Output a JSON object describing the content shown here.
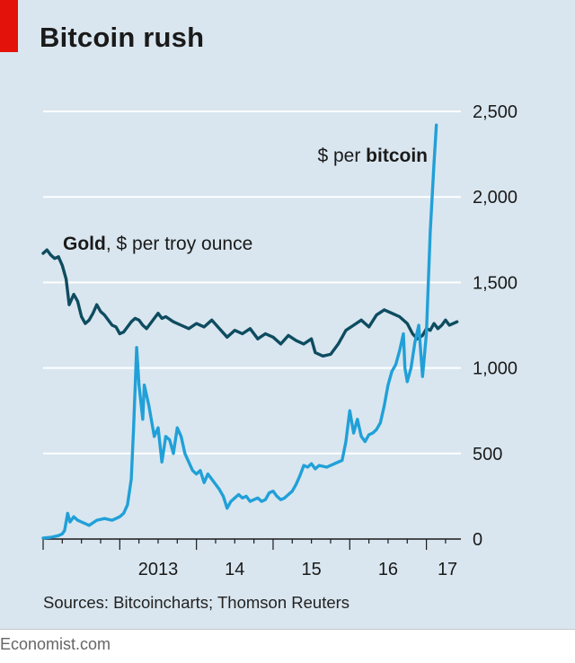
{
  "title": "Bitcoin rush",
  "source": "Sources: Bitcoincharts; Thomson Reuters",
  "credit": "Economist.com",
  "colors": {
    "background": "#d9e6ef",
    "gold": "#0e4c60",
    "bitcoin": "#21a0d8",
    "accent": "#e3120b",
    "grid": "#ffffff"
  },
  "chart_data": {
    "type": "line",
    "ylim": [
      0,
      2500
    ],
    "xlim": [
      2012.0,
      2017.45
    ],
    "y_ticks": [
      {
        "value": 0,
        "label": "0"
      },
      {
        "value": 500,
        "label": "500"
      },
      {
        "value": 1000,
        "label": "1,000"
      },
      {
        "value": 1500,
        "label": "1,500"
      },
      {
        "value": 2000,
        "label": "2,000"
      },
      {
        "value": 2500,
        "label": "2,500"
      }
    ],
    "x_ticks": [
      {
        "value": 2013,
        "label": "2013"
      },
      {
        "value": 2014,
        "label": "14"
      },
      {
        "value": 2015,
        "label": "15"
      },
      {
        "value": 2016,
        "label": "16"
      },
      {
        "value": 2017,
        "label": "17"
      }
    ],
    "grid": true,
    "series": [
      {
        "name": "Gold, $ per troy ounce",
        "label_bold": "Gold",
        "label_rest": ", $ per troy ounce",
        "color": "#0e4c60",
        "points": [
          [
            2012.0,
            1670
          ],
          [
            2012.05,
            1690
          ],
          [
            2012.1,
            1660
          ],
          [
            2012.15,
            1640
          ],
          [
            2012.2,
            1650
          ],
          [
            2012.25,
            1600
          ],
          [
            2012.3,
            1520
          ],
          [
            2012.34,
            1370
          ],
          [
            2012.4,
            1430
          ],
          [
            2012.45,
            1390
          ],
          [
            2012.5,
            1300
          ],
          [
            2012.55,
            1260
          ],
          [
            2012.6,
            1280
          ],
          [
            2012.65,
            1320
          ],
          [
            2012.7,
            1370
          ],
          [
            2012.75,
            1330
          ],
          [
            2012.8,
            1310
          ],
          [
            2012.85,
            1280
          ],
          [
            2012.9,
            1250
          ],
          [
            2012.95,
            1240
          ],
          [
            2013.0,
            1200
          ],
          [
            2013.05,
            1210
          ],
          [
            2013.1,
            1240
          ],
          [
            2013.15,
            1270
          ],
          [
            2013.2,
            1290
          ],
          [
            2013.25,
            1280
          ],
          [
            2013.3,
            1250
          ],
          [
            2013.35,
            1230
          ],
          [
            2013.4,
            1260
          ],
          [
            2013.45,
            1290
          ],
          [
            2013.5,
            1320
          ],
          [
            2013.55,
            1290
          ],
          [
            2013.6,
            1300
          ],
          [
            2013.7,
            1270
          ],
          [
            2013.8,
            1250
          ],
          [
            2013.9,
            1230
          ],
          [
            2014.0,
            1260
          ],
          [
            2014.1,
            1240
          ],
          [
            2014.2,
            1280
          ],
          [
            2014.3,
            1230
          ],
          [
            2014.4,
            1180
          ],
          [
            2014.5,
            1220
          ],
          [
            2014.6,
            1200
          ],
          [
            2014.7,
            1230
          ],
          [
            2014.8,
            1170
          ],
          [
            2014.9,
            1200
          ],
          [
            2015.0,
            1180
          ],
          [
            2015.1,
            1140
          ],
          [
            2015.2,
            1190
          ],
          [
            2015.3,
            1160
          ],
          [
            2015.4,
            1140
          ],
          [
            2015.5,
            1170
          ],
          [
            2015.55,
            1090
          ],
          [
            2015.65,
            1070
          ],
          [
            2015.75,
            1080
          ],
          [
            2015.85,
            1140
          ],
          [
            2015.95,
            1220
          ],
          [
            2016.05,
            1250
          ],
          [
            2016.15,
            1280
          ],
          [
            2016.25,
            1240
          ],
          [
            2016.35,
            1310
          ],
          [
            2016.45,
            1340
          ],
          [
            2016.55,
            1320
          ],
          [
            2016.65,
            1300
          ],
          [
            2016.75,
            1260
          ],
          [
            2016.82,
            1200
          ],
          [
            2016.88,
            1170
          ],
          [
            2016.95,
            1190
          ],
          [
            2017.0,
            1230
          ],
          [
            2017.05,
            1220
          ],
          [
            2017.1,
            1260
          ],
          [
            2017.15,
            1230
          ],
          [
            2017.2,
            1250
          ],
          [
            2017.25,
            1280
          ],
          [
            2017.3,
            1250
          ],
          [
            2017.35,
            1260
          ],
          [
            2017.4,
            1270
          ]
        ]
      },
      {
        "name": "$ per bitcoin",
        "label_rest": "$ per ",
        "label_bold": "bitcoin",
        "color": "#21a0d8",
        "points": [
          [
            2012.0,
            6
          ],
          [
            2012.1,
            10
          ],
          [
            2012.2,
            20
          ],
          [
            2012.25,
            30
          ],
          [
            2012.28,
            50
          ],
          [
            2012.32,
            150
          ],
          [
            2012.35,
            100
          ],
          [
            2012.4,
            130
          ],
          [
            2012.45,
            110
          ],
          [
            2012.5,
            100
          ],
          [
            2012.6,
            80
          ],
          [
            2012.7,
            110
          ],
          [
            2012.8,
            120
          ],
          [
            2012.9,
            110
          ],
          [
            2013.0,
            130
          ],
          [
            2013.05,
            150
          ],
          [
            2013.1,
            200
          ],
          [
            2013.15,
            350
          ],
          [
            2013.18,
            650
          ],
          [
            2013.22,
            1120
          ],
          [
            2013.25,
            900
          ],
          [
            2013.3,
            700
          ],
          [
            2013.32,
            900
          ],
          [
            2013.38,
            780
          ],
          [
            2013.45,
            600
          ],
          [
            2013.5,
            650
          ],
          [
            2013.55,
            450
          ],
          [
            2013.6,
            600
          ],
          [
            2013.65,
            580
          ],
          [
            2013.7,
            500
          ],
          [
            2013.75,
            650
          ],
          [
            2013.8,
            600
          ],
          [
            2013.85,
            500
          ],
          [
            2013.9,
            450
          ],
          [
            2013.95,
            400
          ],
          [
            2014.0,
            380
          ],
          [
            2014.05,
            400
          ],
          [
            2014.1,
            330
          ],
          [
            2014.15,
            380
          ],
          [
            2014.2,
            350
          ],
          [
            2014.25,
            320
          ],
          [
            2014.3,
            290
          ],
          [
            2014.35,
            250
          ],
          [
            2014.4,
            180
          ],
          [
            2014.45,
            220
          ],
          [
            2014.5,
            240
          ],
          [
            2014.55,
            260
          ],
          [
            2014.6,
            240
          ],
          [
            2014.65,
            250
          ],
          [
            2014.7,
            220
          ],
          [
            2014.75,
            230
          ],
          [
            2014.8,
            240
          ],
          [
            2014.85,
            220
          ],
          [
            2014.9,
            230
          ],
          [
            2014.95,
            270
          ],
          [
            2015.0,
            280
          ],
          [
            2015.05,
            250
          ],
          [
            2015.1,
            230
          ],
          [
            2015.15,
            240
          ],
          [
            2015.2,
            260
          ],
          [
            2015.25,
            280
          ],
          [
            2015.3,
            320
          ],
          [
            2015.35,
            370
          ],
          [
            2015.4,
            430
          ],
          [
            2015.45,
            420
          ],
          [
            2015.5,
            440
          ],
          [
            2015.55,
            410
          ],
          [
            2015.6,
            430
          ],
          [
            2015.7,
            420
          ],
          [
            2015.8,
            440
          ],
          [
            2015.9,
            460
          ],
          [
            2015.95,
            570
          ],
          [
            2016.0,
            750
          ],
          [
            2016.05,
            620
          ],
          [
            2016.1,
            700
          ],
          [
            2016.15,
            600
          ],
          [
            2016.2,
            570
          ],
          [
            2016.25,
            610
          ],
          [
            2016.3,
            620
          ],
          [
            2016.35,
            640
          ],
          [
            2016.4,
            680
          ],
          [
            2016.45,
            780
          ],
          [
            2016.5,
            900
          ],
          [
            2016.55,
            980
          ],
          [
            2016.6,
            1020
          ],
          [
            2016.65,
            1100
          ],
          [
            2016.7,
            1200
          ],
          [
            2016.72,
            1000
          ],
          [
            2016.75,
            920
          ],
          [
            2016.8,
            1000
          ],
          [
            2016.85,
            1150
          ],
          [
            2016.9,
            1250
          ],
          [
            2016.95,
            950
          ],
          [
            2017.0,
            1200
          ],
          [
            2017.05,
            1800
          ],
          [
            2017.1,
            2200
          ],
          [
            2017.13,
            2420
          ]
        ]
      }
    ]
  }
}
